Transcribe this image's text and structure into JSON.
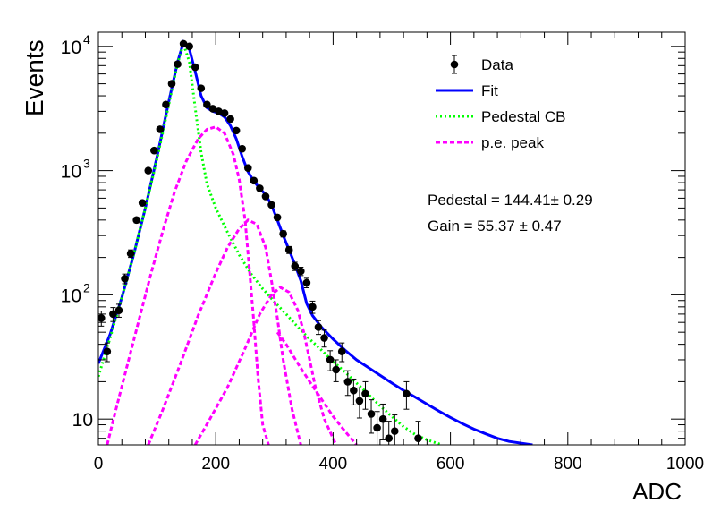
{
  "chart_data": {
    "type": "scatter",
    "xlabel": "ADC",
    "ylabel": "Events",
    "xlim": [
      0,
      1000
    ],
    "ylim": [
      6.2,
      13000
    ],
    "yscale": "log",
    "x_ticks": [
      {
        "value": 0,
        "label": "0"
      },
      {
        "value": 200,
        "label": "200"
      },
      {
        "value": 400,
        "label": "400"
      },
      {
        "value": 600,
        "label": "600"
      },
      {
        "value": 800,
        "label": "800"
      },
      {
        "value": 1000,
        "label": "1000"
      }
    ],
    "y_ticks": [
      {
        "value": 10,
        "base": "10",
        "exp": ""
      },
      {
        "value": 100,
        "base": "10",
        "exp": "2"
      },
      {
        "value": 1000,
        "base": "10",
        "exp": "3"
      },
      {
        "value": 10000,
        "base": "10",
        "exp": "4"
      }
    ],
    "legend_position": "top-right",
    "legend": [
      {
        "label": "Data",
        "style": "marker",
        "color": "#000000"
      },
      {
        "label": "Fit",
        "style": "solid",
        "color": "#0000ff"
      },
      {
        "label": "Pedestal CB",
        "style": "dotted",
        "color": "#00ff00"
      },
      {
        "label": "p.e. peak",
        "style": "dashed",
        "color": "#ff00ff"
      }
    ],
    "annotations": [
      "Pedestal = 144.41± 0.29",
      "Gain = 55.37 ± 0.47"
    ],
    "series": [
      {
        "name": "Data",
        "kind": "points",
        "color": "#000000",
        "points": [
          {
            "x": 5,
            "y": 65,
            "err": 9
          },
          {
            "x": 15,
            "y": 35,
            "err": 6
          },
          {
            "x": 25,
            "y": 70,
            "err": 9
          },
          {
            "x": 35,
            "y": 75,
            "err": 9
          },
          {
            "x": 45,
            "y": 135,
            "err": 12
          },
          {
            "x": 55,
            "y": 215,
            "err": 15
          },
          {
            "x": 65,
            "y": 400,
            "err": 20
          },
          {
            "x": 75,
            "y": 550,
            "err": 24
          },
          {
            "x": 85,
            "y": 1000,
            "err": 32
          },
          {
            "x": 95,
            "y": 1450,
            "err": 38
          },
          {
            "x": 105,
            "y": 2150,
            "err": 46
          },
          {
            "x": 115,
            "y": 3400,
            "err": 58
          },
          {
            "x": 125,
            "y": 5000,
            "err": 70
          },
          {
            "x": 135,
            "y": 7200,
            "err": 85
          },
          {
            "x": 145,
            "y": 10500,
            "err": 102
          },
          {
            "x": 155,
            "y": 10000,
            "err": 100
          },
          {
            "x": 165,
            "y": 6800,
            "err": 82
          },
          {
            "x": 175,
            "y": 4600,
            "err": 68
          },
          {
            "x": 185,
            "y": 3400,
            "err": 58
          },
          {
            "x": 195,
            "y": 3150,
            "err": 56
          },
          {
            "x": 205,
            "y": 3000,
            "err": 55
          },
          {
            "x": 215,
            "y": 2900,
            "err": 54
          },
          {
            "x": 225,
            "y": 2600,
            "err": 51
          },
          {
            "x": 235,
            "y": 2100,
            "err": 46
          },
          {
            "x": 245,
            "y": 1500,
            "err": 39
          },
          {
            "x": 255,
            "y": 1050,
            "err": 32
          },
          {
            "x": 265,
            "y": 830,
            "err": 29
          },
          {
            "x": 275,
            "y": 720,
            "err": 27
          },
          {
            "x": 285,
            "y": 620,
            "err": 25
          },
          {
            "x": 295,
            "y": 530,
            "err": 23
          },
          {
            "x": 305,
            "y": 420,
            "err": 20
          },
          {
            "x": 315,
            "y": 310,
            "err": 18
          },
          {
            "x": 325,
            "y": 230,
            "err": 15
          },
          {
            "x": 335,
            "y": 170,
            "err": 13
          },
          {
            "x": 345,
            "y": 155,
            "err": 12
          },
          {
            "x": 355,
            "y": 125,
            "err": 11
          },
          {
            "x": 365,
            "y": 80,
            "err": 9
          },
          {
            "x": 375,
            "y": 55,
            "err": 7
          },
          {
            "x": 385,
            "y": 45,
            "err": 7
          },
          {
            "x": 395,
            "y": 30,
            "err": 5.5
          },
          {
            "x": 405,
            "y": 25,
            "err": 5
          },
          {
            "x": 415,
            "y": 35,
            "err": 6
          },
          {
            "x": 425,
            "y": 20,
            "err": 4.5
          },
          {
            "x": 435,
            "y": 17,
            "err": 4
          },
          {
            "x": 445,
            "y": 14,
            "err": 3.8
          },
          {
            "x": 455,
            "y": 16,
            "err": 4
          },
          {
            "x": 465,
            "y": 11,
            "err": 3.3
          },
          {
            "x": 475,
            "y": 8.5,
            "err": 3
          },
          {
            "x": 485,
            "y": 10,
            "err": 3.2
          },
          {
            "x": 495,
            "y": 7,
            "err": 2.6
          },
          {
            "x": 505,
            "y": 8,
            "err": 2.8
          },
          {
            "x": 525,
            "y": 16,
            "err": 4
          },
          {
            "x": 545,
            "y": 7,
            "err": 2.6
          }
        ]
      },
      {
        "name": "Fit",
        "kind": "line",
        "color": "#0000ff",
        "style": "solid",
        "points": [
          [
            0,
            28
          ],
          [
            20,
            48
          ],
          [
            40,
            95
          ],
          [
            60,
            210
          ],
          [
            80,
            500
          ],
          [
            100,
            1300
          ],
          [
            120,
            3600
          ],
          [
            135,
            7500
          ],
          [
            145,
            10800
          ],
          [
            155,
            9500
          ],
          [
            165,
            6300
          ],
          [
            175,
            4000
          ],
          [
            185,
            3200
          ],
          [
            195,
            3000
          ],
          [
            205,
            2900
          ],
          [
            215,
            2700
          ],
          [
            225,
            2300
          ],
          [
            235,
            1800
          ],
          [
            245,
            1300
          ],
          [
            255,
            980
          ],
          [
            265,
            820
          ],
          [
            275,
            720
          ],
          [
            285,
            640
          ],
          [
            295,
            530
          ],
          [
            305,
            400
          ],
          [
            315,
            300
          ],
          [
            325,
            230
          ],
          [
            335,
            175
          ],
          [
            345,
            130
          ],
          [
            355,
            85
          ],
          [
            365,
            68
          ],
          [
            380,
            55
          ],
          [
            400,
            44
          ],
          [
            420,
            36
          ],
          [
            440,
            30
          ],
          [
            460,
            26
          ],
          [
            480,
            22.5
          ],
          [
            500,
            19.5
          ],
          [
            520,
            17
          ],
          [
            540,
            15
          ],
          [
            560,
            13.2
          ],
          [
            580,
            11.6
          ],
          [
            600,
            10.3
          ],
          [
            620,
            9.2
          ],
          [
            640,
            8.3
          ],
          [
            660,
            7.6
          ],
          [
            680,
            7.0
          ],
          [
            700,
            6.6
          ],
          [
            740,
            6.2
          ]
        ]
      },
      {
        "name": "Pedestal CB",
        "kind": "line",
        "color": "#00ff00",
        "style": "dotted",
        "points": [
          [
            0,
            22
          ],
          [
            20,
            45
          ],
          [
            40,
            95
          ],
          [
            60,
            210
          ],
          [
            80,
            500
          ],
          [
            100,
            1250
          ],
          [
            120,
            3400
          ],
          [
            135,
            7300
          ],
          [
            145,
            10500
          ],
          [
            155,
            7500
          ],
          [
            165,
            3200
          ],
          [
            175,
            1400
          ],
          [
            185,
            780
          ],
          [
            200,
            500
          ],
          [
            220,
            320
          ],
          [
            240,
            210
          ],
          [
            260,
            148
          ],
          [
            280,
            112
          ],
          [
            300,
            88
          ],
          [
            320,
            70
          ],
          [
            340,
            55
          ],
          [
            360,
            44
          ],
          [
            380,
            36
          ],
          [
            400,
            29
          ],
          [
            420,
            24
          ],
          [
            440,
            19.5
          ],
          [
            460,
            15.8
          ],
          [
            480,
            12.8
          ],
          [
            500,
            10.5
          ],
          [
            520,
            8.7
          ],
          [
            540,
            7.5
          ],
          [
            560,
            6.8
          ],
          [
            585,
            6.2
          ]
        ]
      },
      {
        "name": "p.e. peak 1",
        "kind": "line",
        "color": "#ff00ff",
        "style": "dashed",
        "points": [
          [
            15,
            6.2
          ],
          [
            30,
            12
          ],
          [
            50,
            28
          ],
          [
            70,
            65
          ],
          [
            90,
            150
          ],
          [
            110,
            330
          ],
          [
            130,
            680
          ],
          [
            150,
            1200
          ],
          [
            170,
            1800
          ],
          [
            185,
            2150
          ],
          [
            200,
            2250
          ],
          [
            215,
            2000
          ],
          [
            230,
            1350
          ],
          [
            240,
            850
          ],
          [
            250,
            400
          ],
          [
            258,
            150
          ],
          [
            265,
            60
          ],
          [
            272,
            22
          ],
          [
            280,
            9
          ],
          [
            290,
            6.2
          ]
        ]
      },
      {
        "name": "p.e. peak 2",
        "kind": "line",
        "color": "#ff00ff",
        "style": "dashed",
        "points": [
          [
            85,
            6.2
          ],
          [
            110,
            12
          ],
          [
            140,
            28
          ],
          [
            170,
            68
          ],
          [
            200,
            150
          ],
          [
            220,
            240
          ],
          [
            240,
            340
          ],
          [
            255,
            400
          ],
          [
            270,
            370
          ],
          [
            285,
            240
          ],
          [
            295,
            130
          ],
          [
            305,
            65
          ],
          [
            315,
            30
          ],
          [
            330,
            12
          ],
          [
            345,
            6.2
          ]
        ]
      },
      {
        "name": "p.e. peak 3",
        "kind": "line",
        "color": "#ff00ff",
        "style": "dashed",
        "points": [
          [
            165,
            6.2
          ],
          [
            190,
            10
          ],
          [
            220,
            18
          ],
          [
            250,
            37
          ],
          [
            275,
            70
          ],
          [
            295,
            100
          ],
          [
            310,
            115
          ],
          [
            325,
            105
          ],
          [
            340,
            75
          ],
          [
            350,
            50
          ],
          [
            360,
            30
          ],
          [
            370,
            18
          ],
          [
            385,
            10
          ],
          [
            405,
            6.2
          ]
        ]
      },
      {
        "name": "p.e. peak tail",
        "kind": "line",
        "color": "#ff00ff",
        "style": "dashed",
        "points": [
          [
            305,
            50
          ],
          [
            320,
            40
          ],
          [
            340,
            28
          ],
          [
            360,
            20
          ],
          [
            380,
            14.5
          ],
          [
            400,
            10.5
          ],
          [
            420,
            8
          ],
          [
            440,
            6.2
          ]
        ]
      }
    ]
  }
}
